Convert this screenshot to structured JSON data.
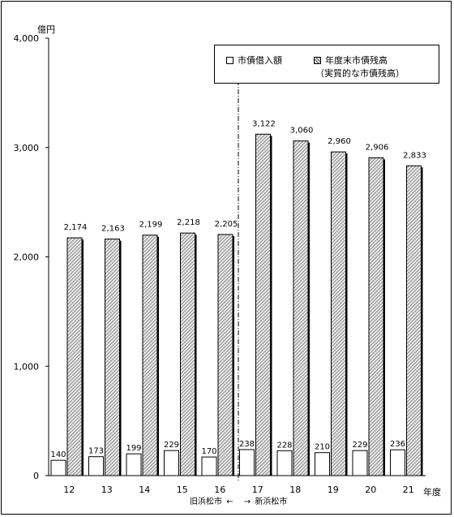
{
  "chart_data": {
    "type": "bar",
    "ylabel": "億円",
    "xlabel": "年度",
    "ylim": [
      0,
      4000
    ],
    "yticks": [
      "0",
      "1,000",
      "2,000",
      "3,000",
      "4,000"
    ],
    "ytick_values": [
      0,
      1000,
      2000,
      3000,
      4000
    ],
    "categories": [
      "12",
      "13",
      "14",
      "15",
      "16",
      "17",
      "18",
      "19",
      "20",
      "21"
    ],
    "series": [
      {
        "name": "市債借入額",
        "values": [
          140,
          173,
          199,
          229,
          170,
          238,
          228,
          210,
          229,
          236
        ],
        "labels": [
          "140",
          "173",
          "199",
          "229",
          "170",
          "238",
          "228",
          "210",
          "229",
          "236"
        ],
        "color": "#ffffff"
      },
      {
        "name": "年度末市債残高",
        "values": [
          2174,
          2163,
          2199,
          2218,
          2205,
          3122,
          3060,
          2960,
          2906,
          2833
        ],
        "labels": [
          "2,174",
          "2,163",
          "2,199",
          "2,218",
          "2,205",
          "3,122",
          "3,060",
          "2,960",
          "2,906",
          "2,833"
        ],
        "color": "#c8c8c8"
      }
    ],
    "legend": {
      "position": "top-right",
      "item1": "市債借入額",
      "item2_line1": "年度末市債残高",
      "item2_line2": "（実質的な市債残高）"
    },
    "annotation": {
      "old_city": "旧浜松市",
      "old_arrow": "←",
      "new_arrow": "→",
      "new_city": "新浜松市"
    },
    "grid": false
  }
}
